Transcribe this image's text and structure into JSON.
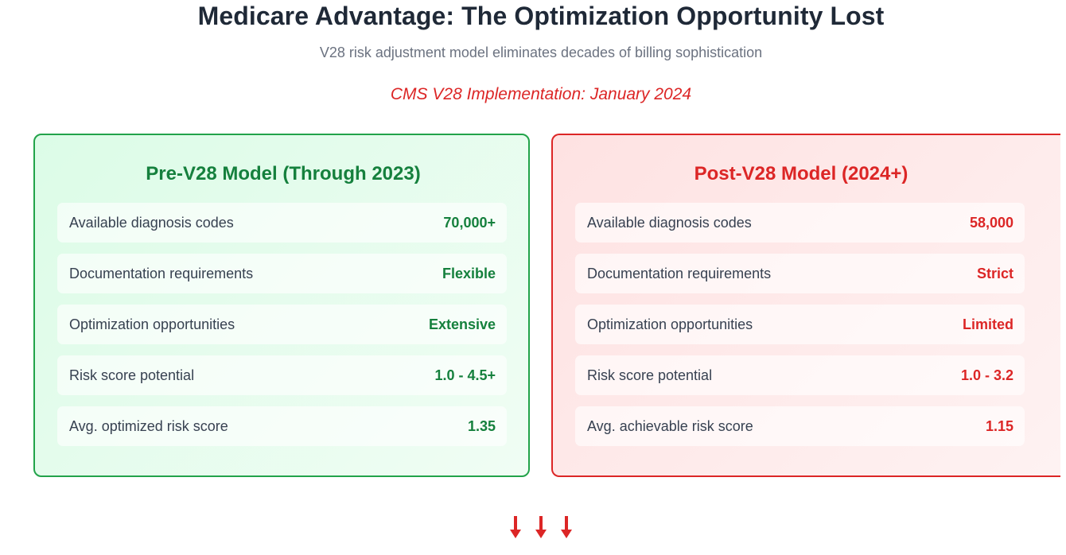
{
  "header": {
    "title": "Medicare Advantage: The Optimization Opportunity Lost",
    "subtitle": "V28 risk adjustment model eliminates decades of billing sophistication",
    "implementation_note": "CMS V28 Implementation: January 2024"
  },
  "pre_model": {
    "title": "Pre-V28 Model (Through 2023)",
    "rows": [
      {
        "label": "Available diagnosis codes",
        "value": "70,000+"
      },
      {
        "label": "Documentation requirements",
        "value": "Flexible"
      },
      {
        "label": "Optimization opportunities",
        "value": "Extensive"
      },
      {
        "label": "Risk score potential",
        "value": "1.0 - 4.5+"
      },
      {
        "label": "Avg. optimized risk score",
        "value": "1.35"
      }
    ]
  },
  "post_model": {
    "title": "Post-V28 Model (2024+)",
    "rows": [
      {
        "label": "Available diagnosis codes",
        "value": "58,000"
      },
      {
        "label": "Documentation requirements",
        "value": "Strict"
      },
      {
        "label": "Optimization opportunities",
        "value": "Limited"
      },
      {
        "label": "Risk score potential",
        "value": "1.0 - 3.2"
      },
      {
        "label": "Avg. achievable risk score",
        "value": "1.15"
      }
    ]
  },
  "colors": {
    "pre_accent": "#15803d",
    "post_accent": "#dc2626",
    "arrow": "#dc2626"
  },
  "icons": [
    "down-arrow-icon",
    "down-arrow-icon",
    "down-arrow-icon"
  ]
}
